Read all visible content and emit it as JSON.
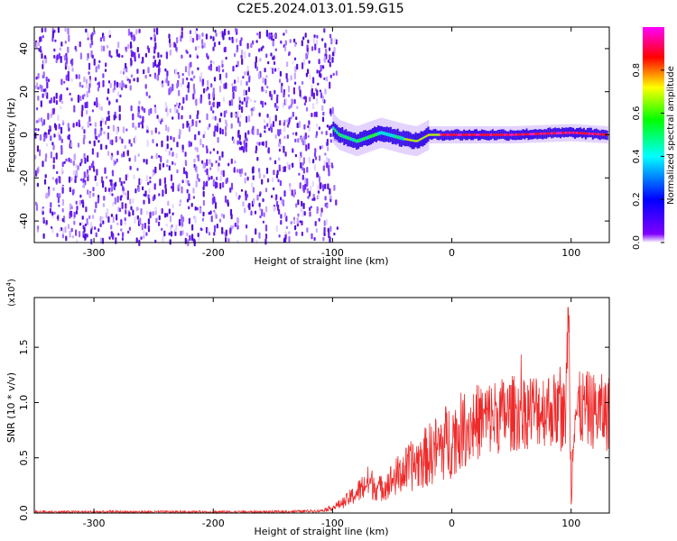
{
  "title": "C2E5.2024.013.01.59.G15",
  "chart_data": [
    {
      "type": "heatmap",
      "panel": "spectrogram",
      "xlabel": "Height of straight line (km)",
      "ylabel": "Frequency (Hz)",
      "xlim": [
        -350,
        132
      ],
      "ylim": [
        -50,
        50
      ],
      "xticks": [
        "-300",
        "-200",
        "-100",
        "0",
        "100"
      ],
      "yticks": [
        "-40",
        "-20",
        "0",
        "20",
        "40"
      ],
      "noise_region_x": [
        -350,
        -95
      ],
      "signal_track": [
        {
          "x": -100,
          "f": 3
        },
        {
          "x": -95,
          "f": 0
        },
        {
          "x": -80,
          "f": -3
        },
        {
          "x": -60,
          "f": 1
        },
        {
          "x": -40,
          "f": -2
        },
        {
          "x": -30,
          "f": -3
        },
        {
          "x": -20,
          "f": 0
        },
        {
          "x": 0,
          "f": 0
        },
        {
          "x": 50,
          "f": 0
        },
        {
          "x": 100,
          "f": 1
        },
        {
          "x": 130,
          "f": 0
        }
      ],
      "colorbar": {
        "label": "Normalized spectral amplitude",
        "ticks": [
          "0.0",
          "0.2",
          "0.4",
          "0.6",
          "0.8"
        ],
        "range": [
          0,
          1
        ],
        "colors": [
          "#ffffff",
          "#7f00ff",
          "#0000ff",
          "#00ffff",
          "#00ff00",
          "#ffff00",
          "#ff0000",
          "#ff00ff"
        ]
      }
    },
    {
      "type": "line",
      "panel": "snr",
      "xlabel": "Height of straight line (km)",
      "ylabel": "SNR (10 * v/v)",
      "scale_label": "(x10",
      "scale_exp": "4",
      "scale_close": ")",
      "xlim": [
        -350,
        132
      ],
      "ylim": [
        0,
        1.95
      ],
      "xticks": [
        "-300",
        "-200",
        "-100",
        "0",
        "100"
      ],
      "yticks": [
        "0.0",
        "0.5",
        "1.0",
        "1.5"
      ],
      "color": "#ee2a2a",
      "series": [
        {
          "x": [
            -350,
            -300,
            -250,
            -200,
            -150,
            -110,
            -100,
            -90,
            -80,
            -70,
            -60,
            -50,
            -40,
            -30,
            -20,
            -10,
            0,
            10,
            20,
            30,
            40,
            50,
            60,
            70,
            80,
            90,
            95,
            98,
            100,
            102,
            110,
            120,
            132
          ],
          "y": [
            0.01,
            0.01,
            0.01,
            0.01,
            0.01,
            0.02,
            0.05,
            0.1,
            0.18,
            0.28,
            0.22,
            0.3,
            0.38,
            0.45,
            0.52,
            0.6,
            0.68,
            0.76,
            0.82,
            0.86,
            0.88,
            0.9,
            0.92,
            0.94,
            0.95,
            0.92,
            0.85,
            1.9,
            0.15,
            0.9,
            0.95,
            0.92,
            0.9
          ]
        }
      ]
    }
  ]
}
